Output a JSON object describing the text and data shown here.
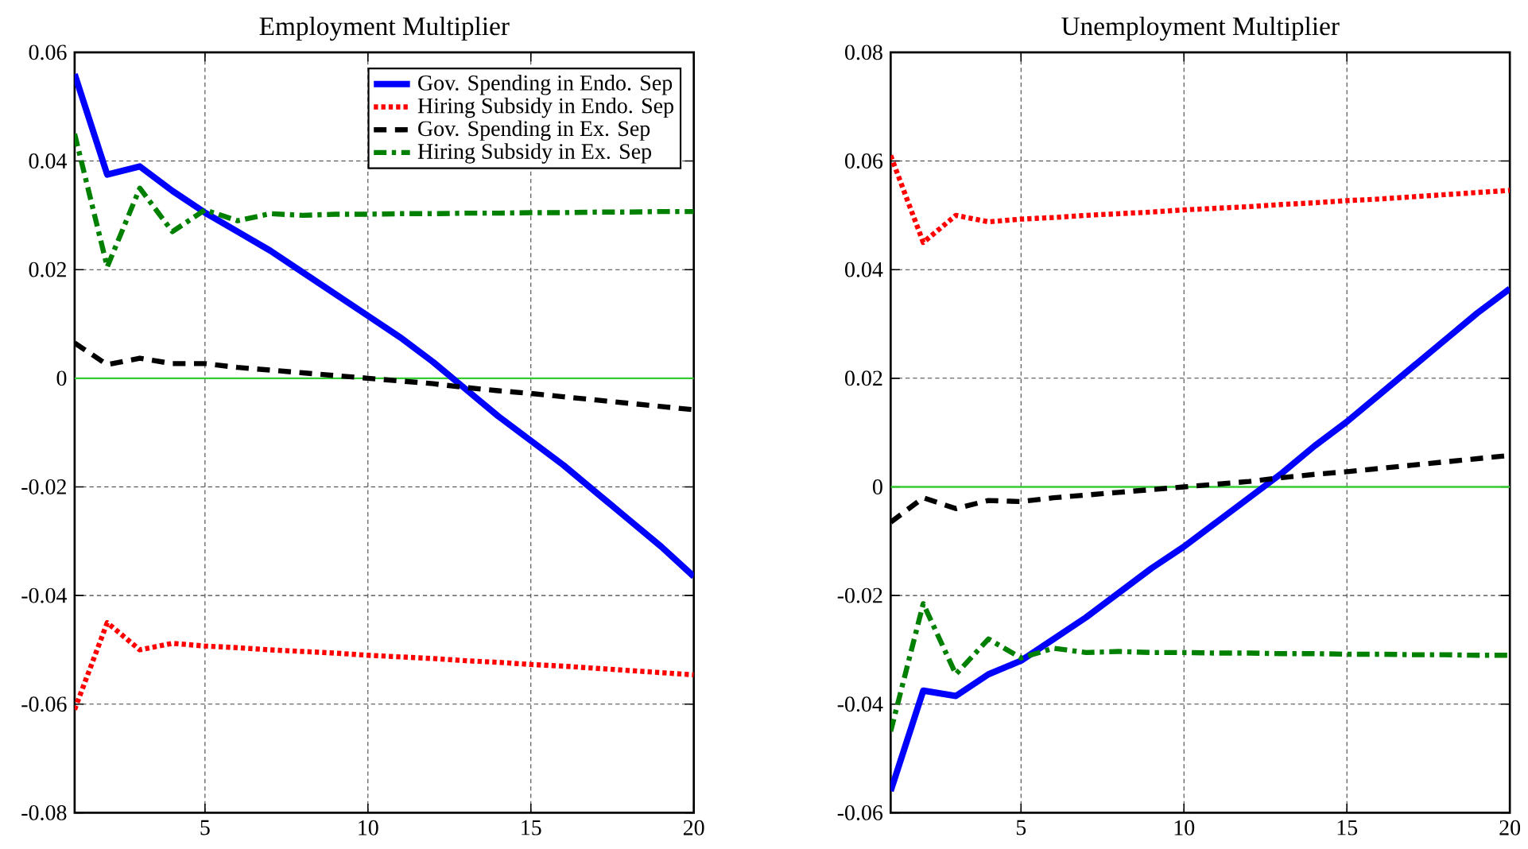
{
  "chart_data": [
    {
      "type": "line",
      "title": "Employment Multiplier",
      "x": [
        1,
        2,
        3,
        4,
        5,
        6,
        7,
        8,
        9,
        10,
        11,
        12,
        13,
        14,
        15,
        16,
        17,
        18,
        19,
        20
      ],
      "xlim": [
        1,
        20
      ],
      "xticks": [
        5,
        10,
        15,
        20
      ],
      "ylim": [
        -0.08,
        0.06
      ],
      "yticks": [
        -0.08,
        -0.06,
        -0.04,
        -0.02,
        0,
        0.02,
        0.04,
        0.06
      ],
      "grid": true,
      "legend": "top right",
      "ref_lines": [
        {
          "axis": "y",
          "value": 0,
          "color": "#33cc33"
        }
      ],
      "series": [
        {
          "name": "Gov. Spending in Endo. Sep",
          "color": "#0000ff",
          "line_style": "solid",
          "values": [
            0.056,
            0.0375,
            0.039,
            0.0345,
            0.0305,
            0.027,
            0.0235,
            0.0195,
            0.0155,
            0.0115,
            0.0075,
            0.003,
            -0.002,
            -0.007,
            -0.0115,
            -0.016,
            -0.021,
            -0.026,
            -0.031,
            -0.0365
          ]
        },
        {
          "name": "Hiring Subsidy in Endo. Sep",
          "color": "#ff0000",
          "line_style": "dotted",
          "values": [
            -0.061,
            -0.045,
            -0.05,
            -0.0488,
            -0.0493,
            -0.0496,
            -0.05,
            -0.0503,
            -0.0506,
            -0.051,
            -0.0513,
            -0.0516,
            -0.052,
            -0.0523,
            -0.0527,
            -0.053,
            -0.0534,
            -0.0538,
            -0.0542,
            -0.0546
          ]
        },
        {
          "name": "Gov. Spending in Ex. Sep",
          "color": "#000000",
          "line_style": "dashed",
          "values": [
            0.0065,
            0.0025,
            0.0037,
            0.0027,
            0.0027,
            0.002,
            0.0015,
            0.001,
            0.0005,
            0,
            -0.0005,
            -0.001,
            -0.0017,
            -0.0023,
            -0.0028,
            -0.0034,
            -0.004,
            -0.0046,
            -0.0052,
            -0.0058
          ]
        },
        {
          "name": "Hiring Subsidy in Ex. Sep",
          "color": "#008000",
          "line_style": "dashdot",
          "values": [
            0.045,
            0.0205,
            0.035,
            0.027,
            0.031,
            0.029,
            0.0303,
            0.03,
            0.0302,
            0.0302,
            0.0303,
            0.0303,
            0.0304,
            0.0304,
            0.0305,
            0.0305,
            0.0306,
            0.0306,
            0.0307,
            0.0307
          ]
        }
      ]
    },
    {
      "type": "line",
      "title": "Unemployment Multiplier",
      "x": [
        1,
        2,
        3,
        4,
        5,
        6,
        7,
        8,
        9,
        10,
        11,
        12,
        13,
        14,
        15,
        16,
        17,
        18,
        19,
        20
      ],
      "xlim": [
        1,
        20
      ],
      "xticks": [
        5,
        10,
        15,
        20
      ],
      "ylim": [
        -0.06,
        0.08
      ],
      "yticks": [
        -0.06,
        -0.04,
        -0.02,
        0,
        0.02,
        0.04,
        0.06,
        0.08
      ],
      "grid": true,
      "ref_lines": [
        {
          "axis": "y",
          "value": 0,
          "color": "#33cc33"
        }
      ],
      "series": [
        {
          "color": "#0000ff",
          "line_style": "solid",
          "values": [
            -0.056,
            -0.0375,
            -0.0385,
            -0.0345,
            -0.032,
            -0.028,
            -0.024,
            -0.0195,
            -0.015,
            -0.011,
            -0.0065,
            -0.002,
            0.0025,
            0.0075,
            0.012,
            0.017,
            0.022,
            0.027,
            0.032,
            0.0365
          ]
        },
        {
          "color": "#ff0000",
          "line_style": "dotted",
          "values": [
            0.061,
            0.045,
            0.05,
            0.0488,
            0.0493,
            0.0496,
            0.05,
            0.0503,
            0.0506,
            0.051,
            0.0513,
            0.0516,
            0.052,
            0.0523,
            0.0527,
            0.053,
            0.0534,
            0.0538,
            0.0542,
            0.0546
          ]
        },
        {
          "color": "#000000",
          "line_style": "dashed",
          "values": [
            -0.0065,
            -0.002,
            -0.004,
            -0.0025,
            -0.0027,
            -0.002,
            -0.0015,
            -0.001,
            -0.0005,
            0,
            0.0005,
            0.001,
            0.0017,
            0.0023,
            0.0028,
            0.0034,
            0.004,
            0.0046,
            0.0052,
            0.0058
          ]
        },
        {
          "color": "#008000",
          "line_style": "dashdot",
          "values": [
            -0.045,
            -0.0215,
            -0.0345,
            -0.028,
            -0.0315,
            -0.0297,
            -0.0305,
            -0.0303,
            -0.0305,
            -0.0305,
            -0.0306,
            -0.0306,
            -0.0307,
            -0.0307,
            -0.0308,
            -0.0308,
            -0.0309,
            -0.0309,
            -0.031,
            -0.031
          ]
        }
      ]
    }
  ]
}
